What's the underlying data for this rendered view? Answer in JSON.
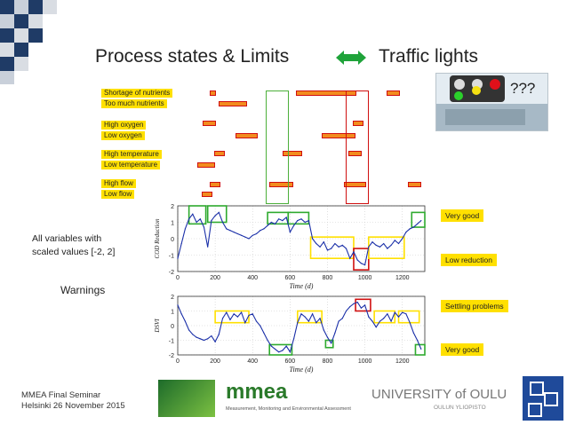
{
  "slide": {
    "title_left": "Process states & Limits",
    "title_right": "Traffic lights",
    "question": "???"
  },
  "state_labels": [
    [
      "Shortage of nutrients",
      "Too much nutrients"
    ],
    [
      "High oxygen",
      "Low oxygen"
    ],
    [
      "High temperature",
      "Low temperature"
    ],
    [
      "High flow",
      "Low flow"
    ]
  ],
  "side_text": {
    "scaled": [
      "All variables with",
      "scaled values [-2, 2]"
    ],
    "warnings": "Warnings"
  },
  "notes": [
    "Very good",
    "Low reduction",
    "Settling problems",
    "Very good"
  ],
  "footer": {
    "line1": "MMEA Final Seminar",
    "line2": "Helsinki 26 November 2015"
  },
  "logos": {
    "mmea": "mmea",
    "mmea_sub": "Measurement, Monitoring and Environmental Assessment",
    "univ": "UNIVERSITY of OULU",
    "univ_sub": "OULUN YLIOPISTO"
  },
  "colors": {
    "yellow": "#ffe000",
    "green": "#2eaa2e",
    "red": "#d01010",
    "curve": "#1a2fa8",
    "bar": "#f28c1e"
  },
  "chart_data": [
    {
      "type": "line",
      "ylabel": "COD Reduction",
      "xlabel": "Time (d)",
      "xlim": [
        0,
        1320
      ],
      "ylim": [
        -2,
        2
      ],
      "xticks": [
        0,
        200,
        400,
        600,
        800,
        1000,
        1200
      ],
      "yticks": [
        2,
        1,
        0,
        -1,
        -2
      ],
      "x": [
        0,
        20,
        40,
        60,
        80,
        100,
        120,
        140,
        160,
        180,
        200,
        220,
        240,
        260,
        280,
        300,
        320,
        340,
        360,
        380,
        400,
        420,
        440,
        460,
        480,
        500,
        520,
        540,
        560,
        580,
        600,
        620,
        640,
        660,
        680,
        700,
        720,
        740,
        760,
        780,
        800,
        820,
        840,
        860,
        880,
        900,
        920,
        940,
        960,
        980,
        1000,
        1020,
        1040,
        1060,
        1080,
        1100,
        1120,
        1140,
        1160,
        1180,
        1200,
        1220,
        1240,
        1260,
        1280,
        1300
      ],
      "y": [
        -1.2,
        -0.3,
        0.6,
        1.2,
        1.5,
        1.0,
        1.2,
        0.7,
        -0.5,
        1.1,
        1.4,
        1.6,
        1.0,
        0.6,
        0.5,
        0.4,
        0.3,
        0.2,
        0.1,
        0.0,
        0.2,
        0.3,
        0.5,
        0.6,
        0.8,
        1.0,
        0.9,
        1.2,
        1.1,
        1.3,
        0.4,
        0.8,
        1.1,
        1.2,
        1.0,
        1.1,
        0.0,
        -0.3,
        -0.5,
        -0.2,
        -0.7,
        -0.6,
        -0.3,
        -0.5,
        -0.4,
        -0.6,
        -1.2,
        -0.8,
        -1.3,
        -1.5,
        -1.6,
        -0.5,
        -0.2,
        -0.4,
        -0.5,
        -0.3,
        -0.6,
        -0.4,
        -0.1,
        -0.3,
        0.0,
        0.4,
        0.6,
        0.7,
        0.9,
        1.1
      ],
      "boxes": [
        {
          "x": [
            60,
            150
          ],
          "y": [
            0.9,
            2.0
          ],
          "color": "green"
        },
        {
          "x": [
            160,
            260
          ],
          "y": [
            1.0,
            2.0
          ],
          "color": "green"
        },
        {
          "x": [
            480,
            590
          ],
          "y": [
            0.9,
            1.6
          ],
          "color": "green"
        },
        {
          "x": [
            590,
            700
          ],
          "y": [
            0.9,
            1.6
          ],
          "color": "green"
        },
        {
          "x": [
            710,
            940
          ],
          "y": [
            -1.2,
            0.1
          ],
          "color": "yellow"
        },
        {
          "x": [
            940,
            1020
          ],
          "y": [
            -1.9,
            -0.6
          ],
          "color": "red"
        },
        {
          "x": [
            1020,
            1210
          ],
          "y": [
            -1.2,
            0.1
          ],
          "color": "yellow"
        },
        {
          "x": [
            1250,
            1320
          ],
          "y": [
            0.7,
            1.6
          ],
          "color": "green"
        }
      ]
    },
    {
      "type": "line",
      "ylabel": "DSVI",
      "xlabel": "Time (d)",
      "xlim": [
        0,
        1320
      ],
      "ylim": [
        -2,
        2
      ],
      "xticks": [
        0,
        200,
        400,
        600,
        800,
        1000,
        1200
      ],
      "yticks": [
        2,
        1,
        0,
        -1,
        -2
      ],
      "x": [
        0,
        20,
        40,
        60,
        80,
        100,
        120,
        140,
        160,
        180,
        200,
        220,
        240,
        260,
        280,
        300,
        320,
        340,
        360,
        380,
        400,
        420,
        440,
        460,
        480,
        500,
        520,
        540,
        560,
        580,
        600,
        620,
        640,
        660,
        680,
        700,
        720,
        740,
        760,
        780,
        800,
        820,
        840,
        860,
        880,
        900,
        920,
        940,
        960,
        980,
        1000,
        1020,
        1040,
        1060,
        1080,
        1100,
        1120,
        1140,
        1160,
        1180,
        1200,
        1220,
        1240,
        1260,
        1280,
        1300
      ],
      "y": [
        1.4,
        0.8,
        0.3,
        -0.3,
        -0.6,
        -0.8,
        -0.9,
        -1.0,
        -0.9,
        -0.7,
        -1.1,
        -0.6,
        0.5,
        0.9,
        0.4,
        0.8,
        0.6,
        0.9,
        0.2,
        0.7,
        0.8,
        0.3,
        0.0,
        -0.5,
        -1.0,
        -1.4,
        -1.6,
        -1.8,
        -1.7,
        -1.4,
        -1.8,
        -0.9,
        0.2,
        0.8,
        0.6,
        0.3,
        0.8,
        0.2,
        0.5,
        -0.3,
        -0.8,
        -1.2,
        -0.5,
        0.3,
        0.5,
        1.0,
        1.3,
        1.5,
        1.6,
        1.2,
        1.4,
        0.6,
        0.3,
        -0.1,
        0.3,
        0.5,
        0.8,
        0.3,
        0.9,
        0.6,
        0.9,
        0.8,
        0.2,
        -0.5,
        -1.0,
        -1.6
      ],
      "boxes": [
        {
          "x": [
            200,
            380
          ],
          "y": [
            0.2,
            1.0
          ],
          "color": "yellow"
        },
        {
          "x": [
            490,
            610
          ],
          "y": [
            -2.0,
            -1.3
          ],
          "color": "green"
        },
        {
          "x": [
            640,
            770
          ],
          "y": [
            0.2,
            1.0
          ],
          "color": "yellow"
        },
        {
          "x": [
            790,
            830
          ],
          "y": [
            -1.5,
            -1.0
          ],
          "color": "green"
        },
        {
          "x": [
            950,
            1030
          ],
          "y": [
            1.0,
            1.8
          ],
          "color": "red"
        },
        {
          "x": [
            1050,
            1160
          ],
          "y": [
            0.2,
            1.0
          ],
          "color": "yellow"
        },
        {
          "x": [
            1180,
            1290
          ],
          "y": [
            0.2,
            1.0
          ],
          "color": "yellow"
        },
        {
          "x": [
            1270,
            1320
          ],
          "y": [
            -2.0,
            -1.3
          ],
          "color": "green"
        }
      ]
    }
  ]
}
